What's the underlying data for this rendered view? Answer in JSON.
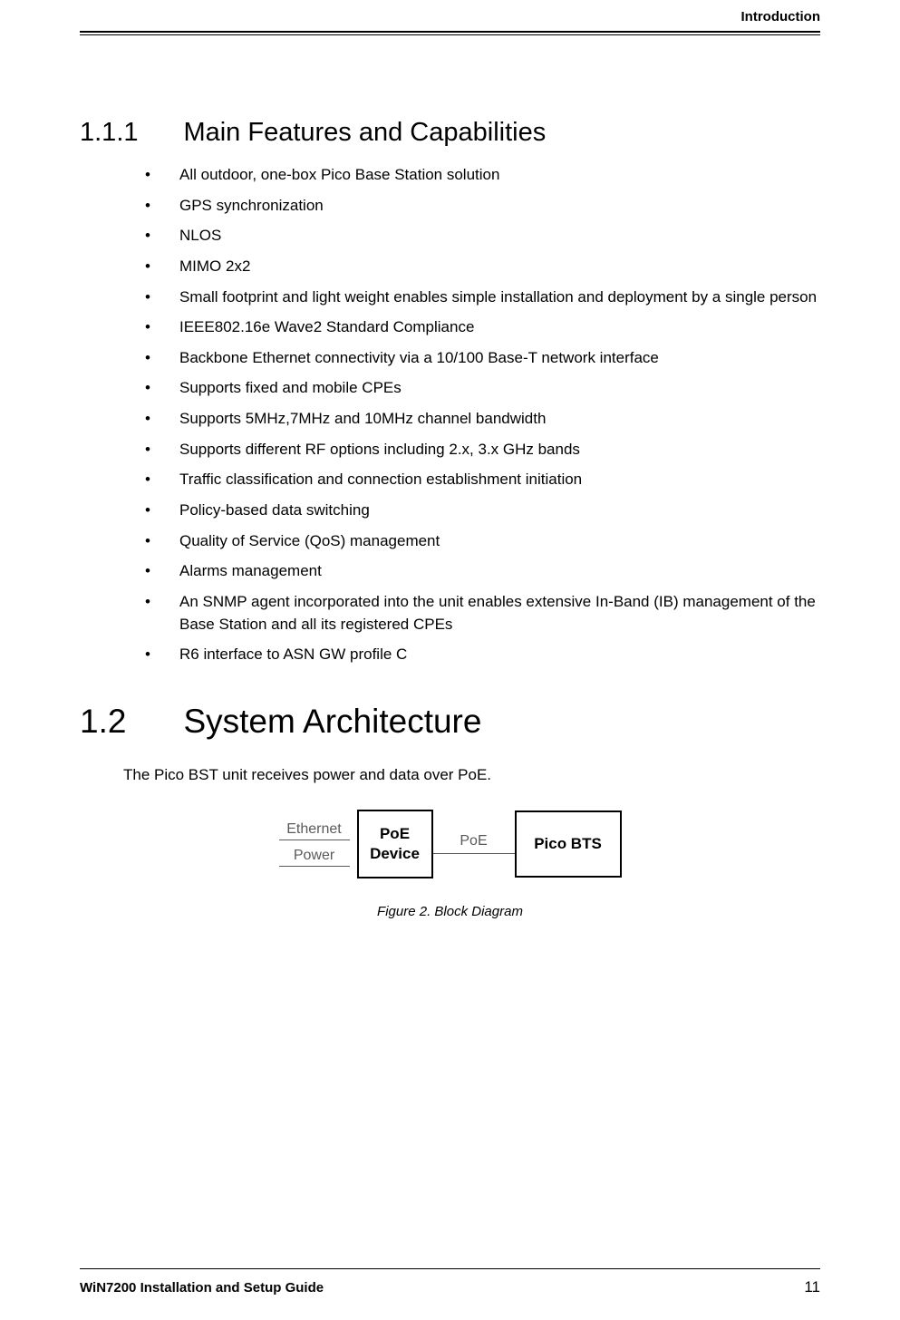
{
  "header": {
    "running_title": "Introduction"
  },
  "section_111": {
    "number": "1.1.1",
    "title": "Main Features and Capabilities",
    "bullets": [
      "All outdoor, one-box Pico Base Station solution",
      "GPS synchronization",
      "NLOS",
      "MIMO 2x2",
      "Small footprint and light weight enables simple installation and deployment by a single person",
      "IEEE802.16e Wave2 Standard Compliance",
      "Backbone Ethernet connectivity via a 10/100 Base-T network interface",
      "Supports fixed and mobile CPEs",
      "Supports 5MHz,7MHz and 10MHz channel bandwidth",
      "Supports different RF options including 2.x, 3.x GHz bands",
      "Traffic classification and connection establishment initiation",
      "Policy-based data switching",
      "Quality of Service (QoS) management",
      "Alarms management",
      "An SNMP agent incorporated into the unit enables extensive In-Band (IB) management of the Base Station and all its registered CPEs",
      "R6 interface to ASN GW profile C"
    ]
  },
  "section_12": {
    "number": "1.2",
    "title": "System Architecture",
    "body": "The Pico BST unit receives power and data over PoE."
  },
  "diagram": {
    "type": "block-diagram",
    "left_input_top": "Ethernet",
    "left_input_bottom": "Power",
    "box1_line1": "PoE",
    "box1_line2": "Device",
    "mid_label": "PoE",
    "box2": "Pico BTS",
    "box_border_color": "#000000",
    "label_color": "#5a5a5a",
    "caption": "Figure 2. Block Diagram"
  },
  "footer": {
    "doc_title": "WiN7200 Installation and Setup Guide",
    "page_number": "11"
  },
  "colors": {
    "text": "#000000",
    "muted": "#5a5a5a",
    "background": "#ffffff",
    "rule": "#000000"
  },
  "typography": {
    "heading_font": "Arial",
    "body_font": "Verdana",
    "h2_size_pt": 28,
    "h3_size_pt": 22,
    "body_size_pt": 13,
    "caption_size_pt": 11,
    "caption_style": "italic"
  }
}
